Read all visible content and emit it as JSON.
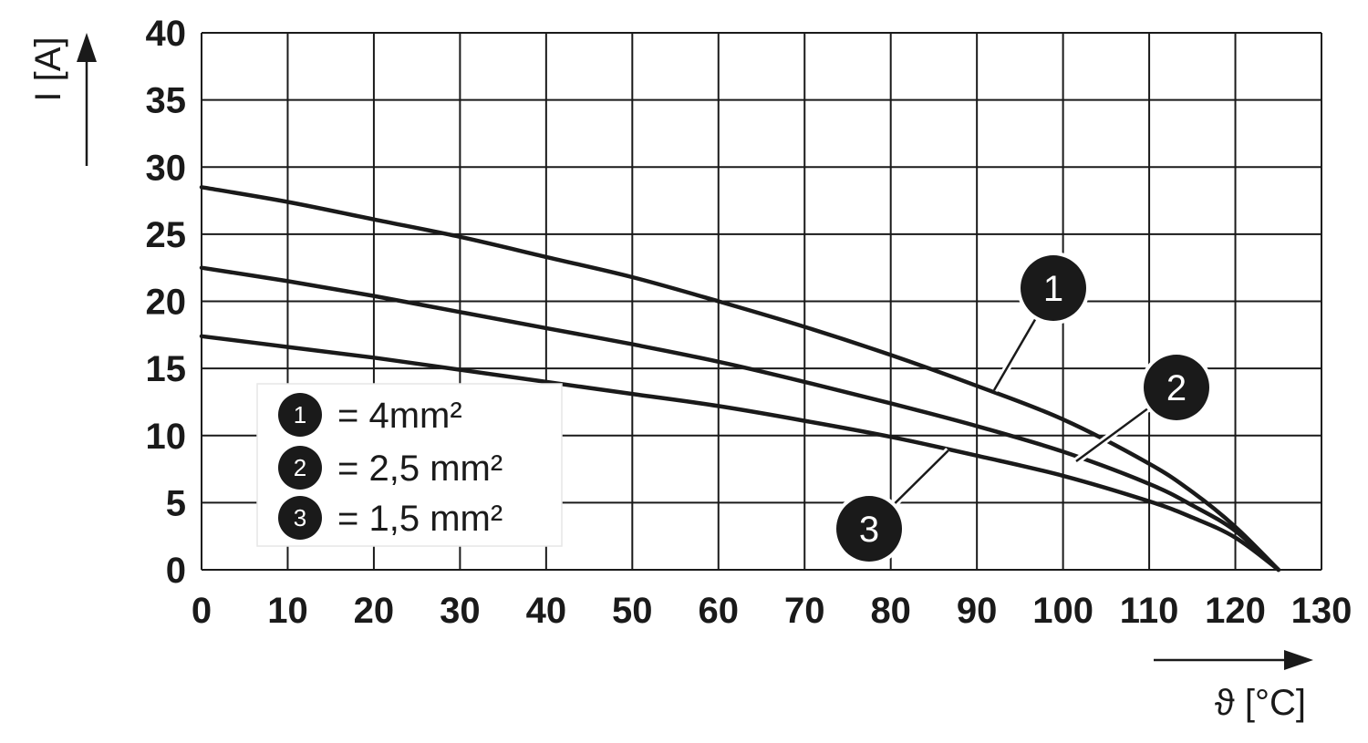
{
  "chart_data": {
    "type": "line",
    "title": "",
    "xlabel": "ϑ [°C]",
    "ylabel": "I [A]",
    "xlim": [
      0,
      130
    ],
    "ylim": [
      0,
      40
    ],
    "x_ticks": [
      "0",
      "10",
      "20",
      "30",
      "40",
      "50",
      "60",
      "70",
      "80",
      "90",
      "100",
      "110",
      "120",
      "130"
    ],
    "y_ticks": [
      "0",
      "5",
      "10",
      "15",
      "20",
      "25",
      "30",
      "35",
      "40"
    ],
    "grid": true,
    "legend_placement": "bottom-left",
    "line_color": "#1a1a1a",
    "series": [
      {
        "marker": "1",
        "legend_label": "= 4mm²",
        "x": [
          0,
          10,
          20,
          30,
          40,
          50,
          60,
          70,
          80,
          90,
          100,
          110,
          115,
          120,
          125
        ],
        "y": [
          28.5,
          27.4,
          26.1,
          24.8,
          23.3,
          21.8,
          20.0,
          18.1,
          16.0,
          13.7,
          11.2,
          7.9,
          5.8,
          3.2,
          0
        ]
      },
      {
        "marker": "2",
        "legend_label": "= 2,5 mm²",
        "x": [
          0,
          10,
          20,
          30,
          40,
          50,
          60,
          70,
          80,
          90,
          100,
          110,
          115,
          120,
          125
        ],
        "y": [
          22.5,
          21.5,
          20.4,
          19.2,
          18.0,
          16.8,
          15.5,
          14.0,
          12.4,
          10.7,
          8.8,
          6.4,
          4.8,
          2.9,
          0
        ]
      },
      {
        "marker": "3",
        "legend_label": "= 1,5 mm²",
        "x": [
          0,
          10,
          20,
          30,
          40,
          50,
          60,
          70,
          80,
          90,
          100,
          110,
          115,
          120,
          125
        ],
        "y": [
          17.4,
          16.6,
          15.8,
          14.9,
          14.0,
          13.1,
          12.2,
          11.1,
          9.9,
          8.5,
          7.0,
          5.1,
          3.9,
          2.4,
          0
        ]
      }
    ]
  }
}
